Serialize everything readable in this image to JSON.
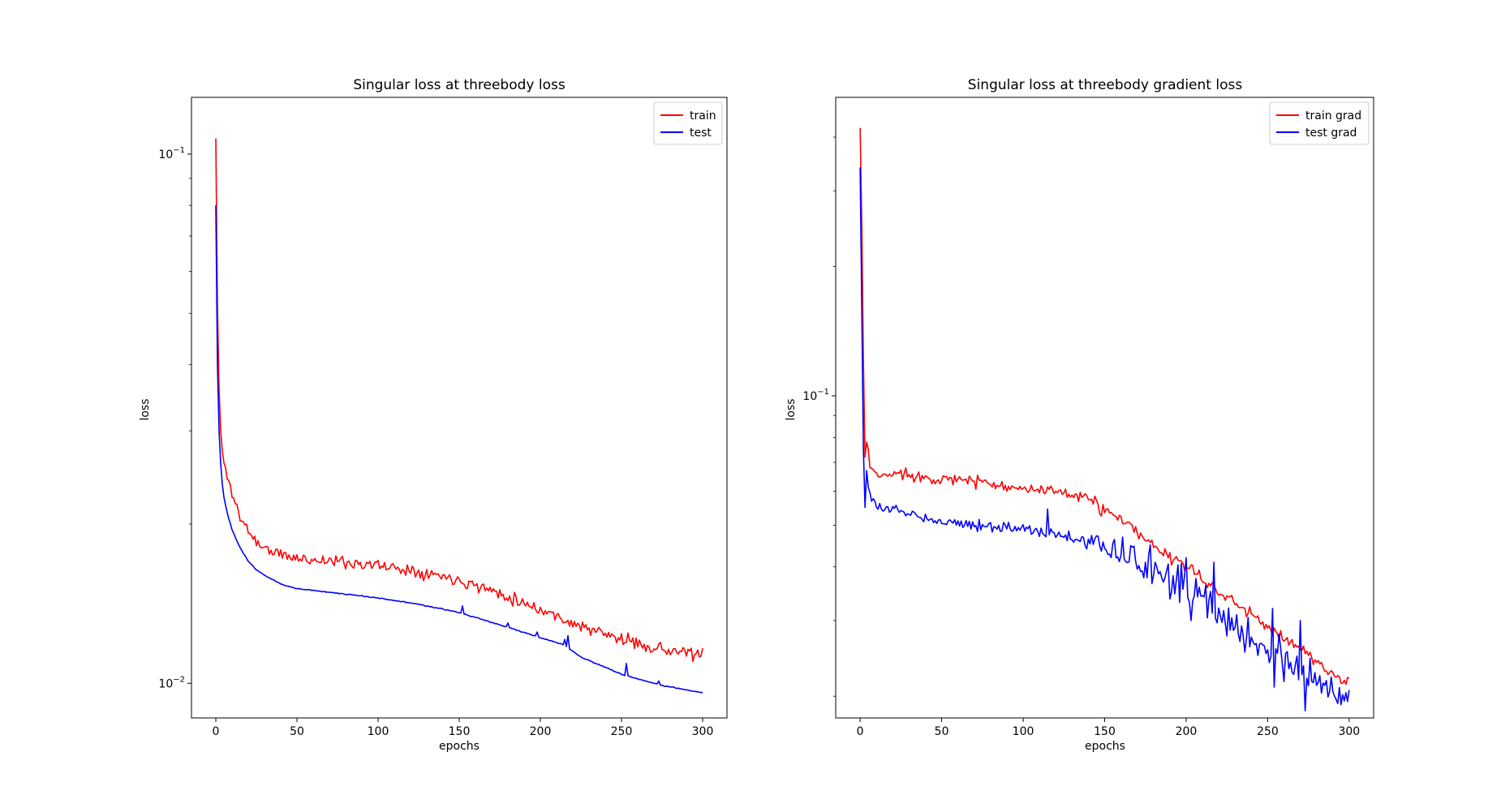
{
  "figure": {
    "background": "#ffffff"
  },
  "chart_data": [
    {
      "type": "line",
      "title": "Singular loss at threebody loss",
      "xlabel": "epochs",
      "ylabel": "loss",
      "yscale": "log",
      "xlim": [
        -15,
        315
      ],
      "ylim": [
        0.0086,
        0.128
      ],
      "xticks": [
        0,
        50,
        100,
        150,
        200,
        250,
        300
      ],
      "xtick_labels": [
        "0",
        "50",
        "100",
        "150",
        "200",
        "250",
        "300"
      ],
      "yticks_major": [
        0.01,
        0.1
      ],
      "ytick_labels": [
        {
          "base": "10",
          "exp": "−2"
        },
        {
          "base": "10",
          "exp": "−1"
        }
      ],
      "yticks_minor": [
        0.02,
        0.03,
        0.04,
        0.05,
        0.06,
        0.07,
        0.08,
        0.09
      ],
      "legend": "top-right",
      "grid": false,
      "series": [
        {
          "name": "train",
          "color": "#ff0000",
          "anchors": [
            [
              0,
              0.107
            ],
            [
              1,
              0.052
            ],
            [
              2,
              0.036
            ],
            [
              3,
              0.03
            ],
            [
              4,
              0.0275
            ],
            [
              5,
              0.026
            ],
            [
              7,
              0.0245
            ],
            [
              10,
              0.023
            ],
            [
              15,
              0.0205
            ],
            [
              20,
              0.0195
            ],
            [
              25,
              0.0185
            ],
            [
              30,
              0.018
            ],
            [
              40,
              0.0175
            ],
            [
              50,
              0.0172
            ],
            [
              75,
              0.017
            ],
            [
              100,
              0.0167
            ],
            [
              125,
              0.0163
            ],
            [
              150,
              0.0157
            ],
            [
              175,
              0.0148
            ],
            [
              200,
              0.0138
            ],
            [
              225,
              0.0128
            ],
            [
              250,
              0.0121
            ],
            [
              275,
              0.0116
            ],
            [
              300,
              0.0113
            ]
          ],
          "noise": 0.025,
          "seed": 11
        },
        {
          "name": "test",
          "color": "#0000ff",
          "anchors": [
            [
              0,
              0.08
            ],
            [
              1,
              0.04
            ],
            [
              2,
              0.03
            ],
            [
              3,
              0.026
            ],
            [
              4,
              0.0238
            ],
            [
              5,
              0.0225
            ],
            [
              7,
              0.021
            ],
            [
              10,
              0.0195
            ],
            [
              15,
              0.018
            ],
            [
              20,
              0.017
            ],
            [
              25,
              0.0164
            ],
            [
              30,
              0.016
            ],
            [
              40,
              0.0154
            ],
            [
              50,
              0.0151
            ],
            [
              75,
              0.0148
            ],
            [
              100,
              0.0145
            ],
            [
              125,
              0.0141
            ],
            [
              150,
              0.0136
            ],
            [
              175,
              0.0129
            ],
            [
              200,
              0.0122
            ],
            [
              215,
              0.0118
            ],
            [
              225,
              0.0112
            ],
            [
              250,
              0.0104
            ],
            [
              275,
              0.0099
            ],
            [
              300,
              0.0096
            ]
          ],
          "noise": 0.002,
          "seed": 23,
          "spikes": [
            [
              152,
              0.014
            ],
            [
              180,
              0.013
            ],
            [
              198,
              0.0125
            ],
            [
              215,
              0.0121
            ],
            [
              217,
              0.0123
            ],
            [
              253,
              0.0109
            ],
            [
              273,
              0.0101
            ]
          ]
        }
      ]
    },
    {
      "type": "line",
      "title": "Singular loss at threebody gradient loss",
      "xlabel": "epochs",
      "ylabel": "loss",
      "yscale": "log",
      "xlim": [
        -15,
        315
      ],
      "ylim": [
        0.0178,
        0.495
      ],
      "xticks": [
        0,
        50,
        100,
        150,
        200,
        250,
        300
      ],
      "xtick_labels": [
        "0",
        "50",
        "100",
        "150",
        "200",
        "250",
        "300"
      ],
      "yticks_major": [
        0.1
      ],
      "ytick_labels": [
        {
          "base": "10",
          "exp": "−1"
        }
      ],
      "yticks_minor": [
        0.02,
        0.03,
        0.04,
        0.05,
        0.06,
        0.07,
        0.08,
        0.09,
        0.2,
        0.3,
        0.4
      ],
      "legend": "top-right",
      "grid": false,
      "series": [
        {
          "name": "train grad",
          "color": "#ff0000",
          "anchors": [
            [
              0,
              0.42
            ],
            [
              1,
              0.25
            ],
            [
              2,
              0.12
            ],
            [
              3,
              0.072
            ],
            [
              4,
              0.078
            ],
            [
              5,
              0.075
            ],
            [
              6,
              0.068
            ],
            [
              10,
              0.065
            ],
            [
              25,
              0.066
            ],
            [
              50,
              0.064
            ],
            [
              75,
              0.063
            ],
            [
              100,
              0.061
            ],
            [
              125,
              0.059
            ],
            [
              140,
              0.058
            ],
            [
              150,
              0.054
            ],
            [
              165,
              0.05
            ],
            [
              175,
              0.046
            ],
            [
              200,
              0.04
            ],
            [
              225,
              0.034
            ],
            [
              250,
              0.029
            ],
            [
              275,
              0.025
            ],
            [
              290,
              0.0225
            ],
            [
              300,
              0.0215
            ]
          ],
          "noise": 0.03,
          "seed": 37
        },
        {
          "name": "test grad",
          "color": "#0000ff",
          "anchors": [
            [
              0,
              0.34
            ],
            [
              1,
              0.16
            ],
            [
              2,
              0.075
            ],
            [
              3,
              0.055
            ],
            [
              4,
              0.067
            ],
            [
              5,
              0.062
            ],
            [
              7,
              0.057
            ],
            [
              10,
              0.055
            ],
            [
              25,
              0.054
            ],
            [
              50,
              0.051
            ],
            [
              75,
              0.05
            ],
            [
              100,
              0.049
            ],
            [
              125,
              0.047
            ],
            [
              150,
              0.045
            ],
            [
              175,
              0.04
            ],
            [
              200,
              0.036
            ],
            [
              225,
              0.03
            ],
            [
              250,
              0.026
            ],
            [
              275,
              0.022
            ],
            [
              300,
              0.0195
            ]
          ],
          "noise": 0.03,
          "seed": 53,
          "noise_ramp": [
            [
              0,
              0.02
            ],
            [
              120,
              0.03
            ],
            [
              160,
              0.07
            ],
            [
              200,
              0.09
            ],
            [
              250,
              0.11
            ],
            [
              300,
              0.06
            ]
          ],
          "spikes": [
            [
              115,
              0.0545
            ],
            [
              178,
              0.045
            ],
            [
              200,
              0.042
            ],
            [
              203,
              0.03
            ],
            [
              217,
              0.041
            ],
            [
              253,
              0.032
            ],
            [
              254,
              0.021
            ],
            [
              270,
              0.03
            ],
            [
              273,
              0.0185
            ],
            [
              290,
              0.0205
            ]
          ]
        }
      ]
    }
  ]
}
